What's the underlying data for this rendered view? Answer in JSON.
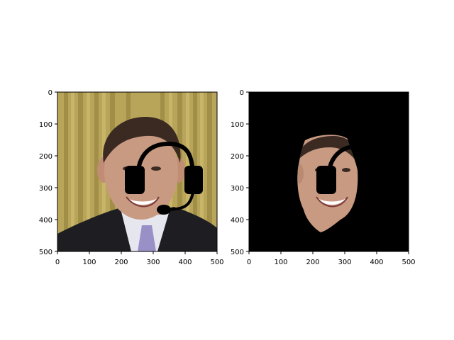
{
  "chart_data": [
    {
      "type": "image",
      "title": "",
      "xlabel": "",
      "ylabel": "",
      "xlim": [
        0,
        500
      ],
      "ylim": [
        500,
        0
      ],
      "xticks": [
        "0",
        "100",
        "200",
        "300",
        "400",
        "500"
      ],
      "yticks": [
        "0",
        "100",
        "200",
        "300",
        "400",
        "500"
      ],
      "content": "photo",
      "overlay_icon": "headset-icon"
    },
    {
      "type": "image",
      "title": "",
      "xlabel": "",
      "ylabel": "",
      "xlim": [
        0,
        500
      ],
      "ylim": [
        500,
        0
      ],
      "xticks": [
        "0",
        "100",
        "200",
        "300",
        "400",
        "500"
      ],
      "yticks": [
        "0",
        "100",
        "200",
        "300",
        "400",
        "500"
      ],
      "content": "masked-photo",
      "background_color": "#000000"
    }
  ],
  "colors": {
    "curtain": "#b9a55a",
    "skin": "#c99a82",
    "hair": "#3a2a22",
    "suit": "#1e1e22",
    "shirt": "#e6e6ee",
    "tie": "#9a90c8",
    "mask": "#000000"
  }
}
